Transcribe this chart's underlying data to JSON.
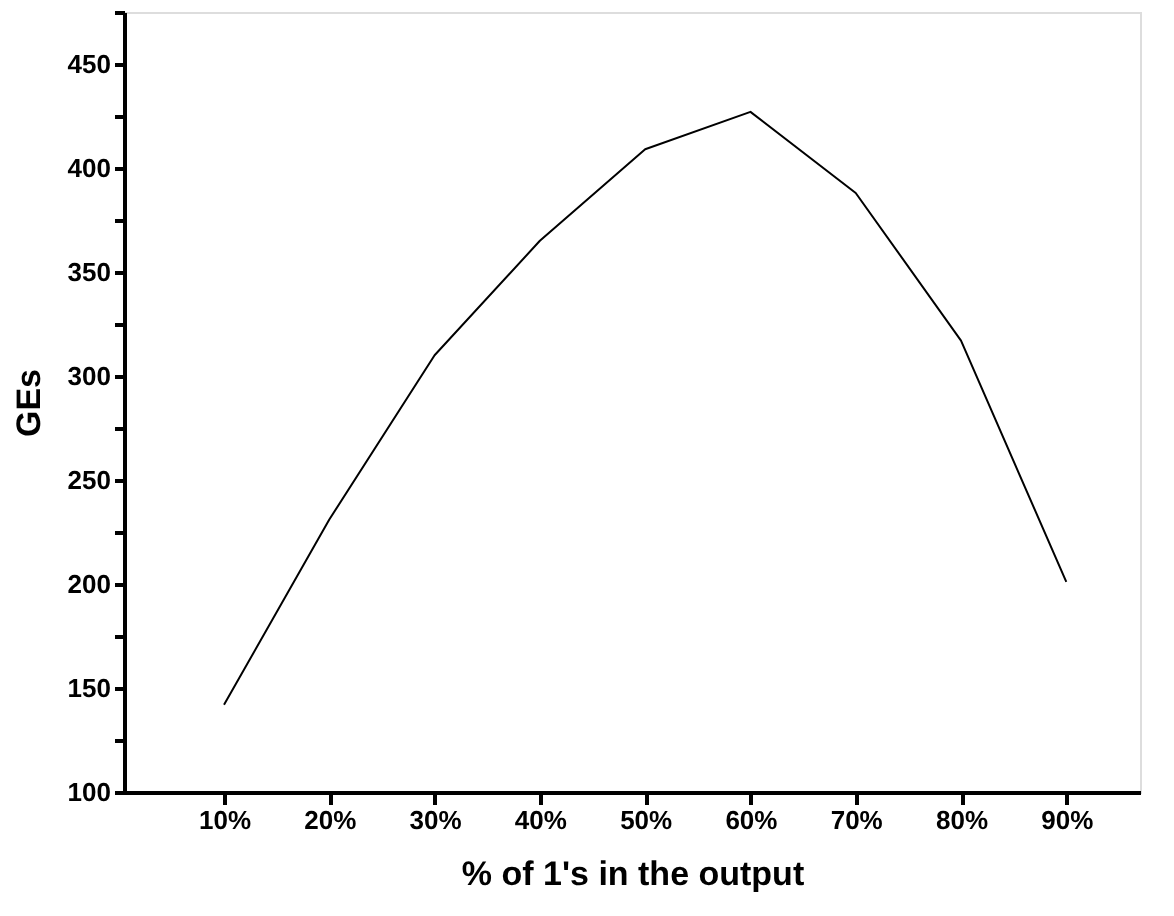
{
  "chart_data": {
    "type": "line",
    "xlabel": "% of 1's in the output",
    "ylabel": "GEs",
    "categories": [
      "10%",
      "20%",
      "30%",
      "40%",
      "50%",
      "60%",
      "70%",
      "80%",
      "90%"
    ],
    "series": [
      {
        "color": "#000000",
        "values": [
          142,
          231,
          310,
          365,
          409,
          427,
          388,
          317,
          201
        ]
      }
    ],
    "ylim": [
      100,
      475
    ],
    "yticks": [
      100,
      {
        "value": 125,
        "label": null
      },
      150,
      {
        "value": 175,
        "label": null
      },
      200,
      {
        "value": 225,
        "label": null
      },
      250,
      {
        "value": 275,
        "label": null
      },
      300,
      {
        "value": 325,
        "label": null
      },
      350,
      {
        "value": 375,
        "label": null
      },
      400,
      {
        "value": 425,
        "label": null
      },
      450,
      {
        "value": 475,
        "label": null
      }
    ],
    "grid": false,
    "marker": "none",
    "line_style": "solid"
  }
}
